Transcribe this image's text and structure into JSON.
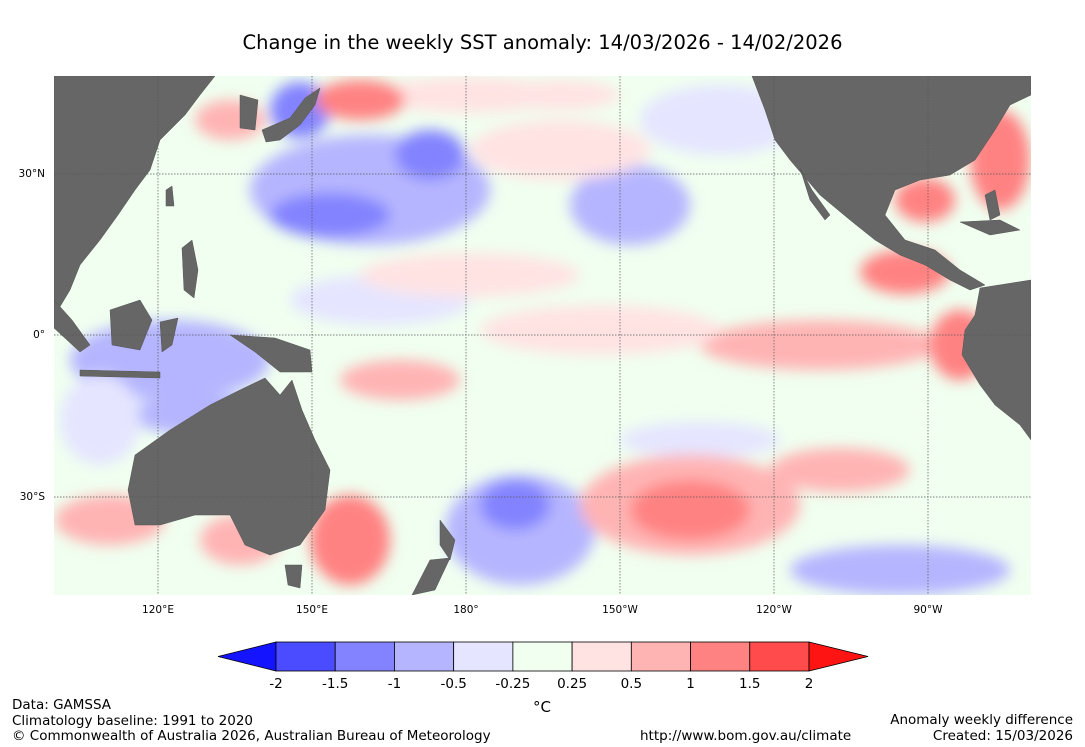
{
  "title": "Change in the weekly SST anomaly: 14/03/2026  -  14/02/2026",
  "lat_labels": [
    "30°N",
    "0°",
    "30°S"
  ],
  "lon_labels": [
    "120°E",
    "150°E",
    "180°",
    "150°W",
    "120°W",
    "90°W"
  ],
  "colorbar": {
    "ticks": [
      "-2",
      "-1.5",
      "-1",
      "-0.5",
      "-0.25",
      "0.25",
      "0.5",
      "1",
      "1.5",
      "2"
    ],
    "colors": [
      "#1414ff",
      "#4b4bff",
      "#8383ff",
      "#b5b5ff",
      "#e5e5ff",
      "#f0fff0",
      "#ffe3e3",
      "#ffb4b4",
      "#ff8282",
      "#ff4b4b",
      "#ff1414"
    ],
    "unit": "°C"
  },
  "colors": {
    "land": "#666666",
    "neutral_ocean": "#f0fff0"
  },
  "footer": {
    "data_source": "Data: GAMSSA",
    "baseline": "Climatology baseline: 1991 to 2020",
    "copyright": "© Commonwealth of Australia 2026, Australian Bureau of Meteorology",
    "url": "http://www.bom.gov.au/climate",
    "product": "Anomaly weekly difference",
    "created": "Created: 15/03/2026"
  }
}
